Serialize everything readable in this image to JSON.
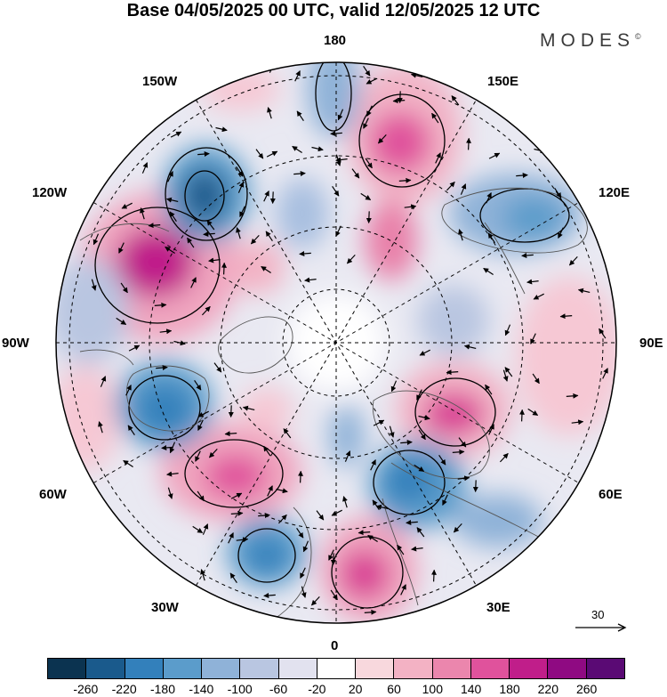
{
  "title": "Base 04/05/2025 00 UTC, valid 12/05/2025 12 UTC",
  "brand": {
    "text": "MODES",
    "mark": "©"
  },
  "longitude_labels": {
    "top": "180",
    "top_right": "150E",
    "right_upper": "120E",
    "right": "90E",
    "right_lower": "60E",
    "bottom_right": "30E",
    "bottom": "0",
    "bottom_left": "30W",
    "left_lower": "60W",
    "left": "90W",
    "left_upper": "120W",
    "top_left": "150W"
  },
  "vector_scale": {
    "value": "30"
  },
  "colorbar": {
    "ticks": [
      "-260",
      "-220",
      "-180",
      "-140",
      "-100",
      "-60",
      "-20",
      "20",
      "60",
      "100",
      "140",
      "180",
      "220",
      "260"
    ],
    "colors": [
      "#0b3350",
      "#1a5a8c",
      "#3380bb",
      "#5b9ccb",
      "#8fb2d8",
      "#b9c6e1",
      "#e2e2ef",
      "#ffffff",
      "#f8d8dd",
      "#f3b2c4",
      "#eb86ad",
      "#e0529c",
      "#c01e8a",
      "#8f0a82",
      "#5a0a74"
    ]
  },
  "map": {
    "center": "North Pole",
    "projection": "polar stereographic",
    "field": "geopotential height anomaly",
    "vectors": "wind"
  }
}
